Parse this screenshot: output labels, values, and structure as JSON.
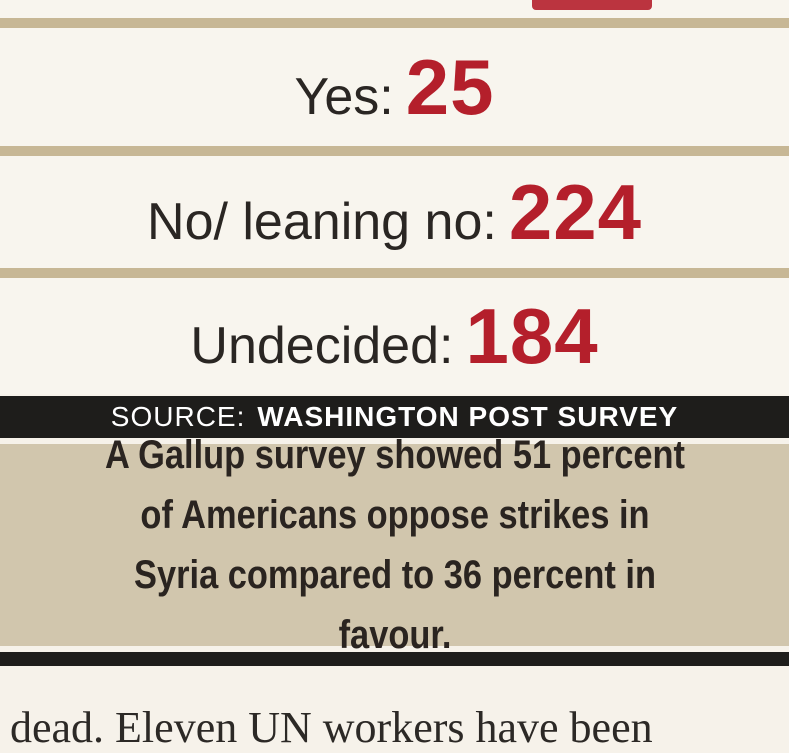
{
  "rows": [
    {
      "label": "Yes:",
      "value": "25"
    },
    {
      "label": "No/ leaning no:",
      "value": "224"
    },
    {
      "label": "Undecided:",
      "value": "184"
    }
  ],
  "source": {
    "prefix": "SOURCE:",
    "name": "WASHINGTON POST SURVEY"
  },
  "note": {
    "text": "A Gallup survey showed 51 percent of Americans oppose strikes in Syria compared to 36 percent in favour."
  },
  "body_text": "dead. Eleven UN workers have been"
}
